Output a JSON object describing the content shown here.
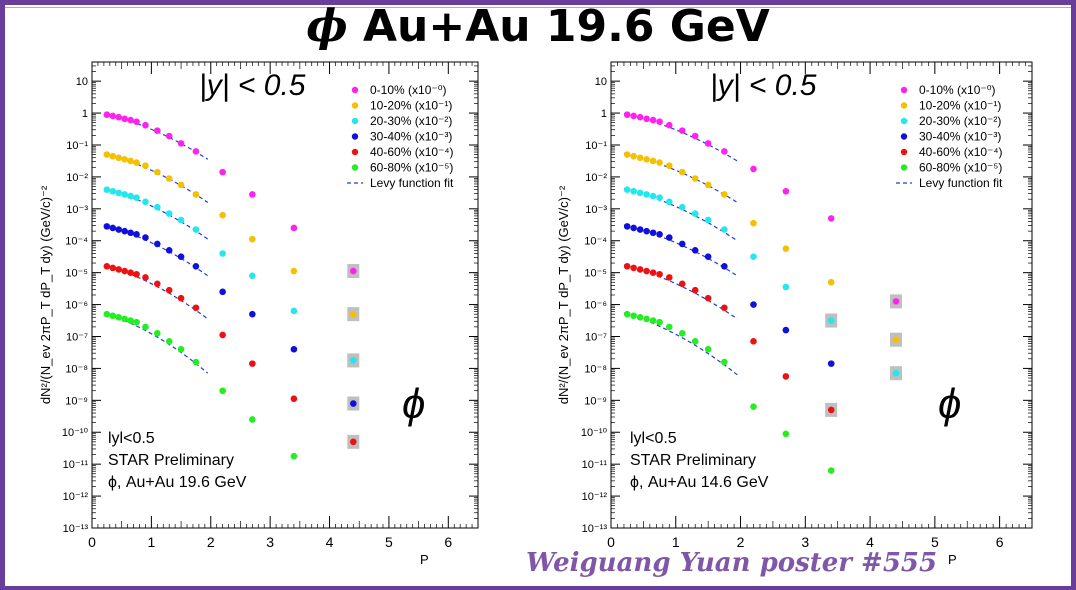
{
  "title": {
    "symbol": "ϕ",
    "text": "Au+Au 19.6 GeV"
  },
  "poster_credit": "Weiguang Yuan poster #555",
  "colors": {
    "frame": "#6a3d9a",
    "poster_text": "#7f56a8",
    "fit_line": "#1f3fd6",
    "series": [
      "#ff22ee",
      "#f5c000",
      "#22e8ee",
      "#1010dd",
      "#ee1111",
      "#22ee22"
    ],
    "sys_box": "#bfbfbf"
  },
  "chart_data": [
    {
      "type": "scatter",
      "ylabel": "dN²/(N_ev 2πP_T dP_T dy) (GeV/c)⁻²",
      "xlabel": "P_T (GeV/c)",
      "xlim": [
        0,
        6.5
      ],
      "ylim_log10": [
        -13,
        1.6
      ],
      "log_y": true,
      "x_ticks": [
        "0",
        "1",
        "2",
        "3",
        "4",
        "5",
        "6"
      ],
      "y_ticks": [
        "10⁻¹³",
        "10⁻¹²",
        "10⁻¹¹",
        "10⁻¹⁰",
        "10⁻⁹",
        "10⁻⁸",
        "10⁻⁷",
        "10⁻⁶",
        "10⁻⁵",
        "10⁻⁴",
        "10⁻³",
        "10⁻²",
        "10⁻¹",
        "1",
        "10"
      ],
      "rapidity_label": "|y| < 0.5",
      "phi_symbol": "ϕ",
      "annotations": [
        "lyl<0.5",
        "STAR Preliminary",
        "ϕ, Au+Au 19.6 GeV"
      ],
      "legend_position": "top-right",
      "legend": [
        "0-10% (x10⁻⁰)",
        "10-20% (x10⁻¹)",
        "20-30% (x10⁻²)",
        "30-40% (x10⁻³)",
        "40-60% (x10⁻⁴)",
        "60-80% (x10⁻⁵)",
        "Levy function fit"
      ],
      "x": [
        0.25,
        0.35,
        0.45,
        0.55,
        0.65,
        0.75,
        0.9,
        1.1,
        1.3,
        1.5,
        1.75,
        2.2,
        2.7,
        3.4,
        4.4
      ],
      "fit_x_range": [
        0.2,
        1.95
      ],
      "series": [
        {
          "values_log10": [
            -0.05,
            -0.09,
            -0.13,
            -0.18,
            -0.22,
            -0.27,
            -0.38,
            -0.55,
            -0.72,
            -0.95,
            -1.2,
            -1.85,
            -2.55,
            -3.6,
            -4.95
          ],
          "fit_end_log10": -1.45,
          "sys_box_points": [
            14
          ]
        },
        {
          "values_log10": [
            -1.3,
            -1.35,
            -1.4,
            -1.45,
            -1.5,
            -1.55,
            -1.65,
            -1.85,
            -2.05,
            -2.25,
            -2.55,
            -3.2,
            -3.95,
            -4.95,
            -6.3
          ],
          "fit_end_log10": -2.8,
          "sys_box_points": [
            14
          ]
        },
        {
          "values_log10": [
            -2.4,
            -2.45,
            -2.5,
            -2.55,
            -2.6,
            -2.65,
            -2.78,
            -2.95,
            -3.15,
            -3.35,
            -3.65,
            -4.4,
            -5.1,
            -6.2,
            -7.75
          ],
          "fit_end_log10": -3.95,
          "sys_box_points": [
            14
          ]
        },
        {
          "values_log10": [
            -3.55,
            -3.6,
            -3.65,
            -3.7,
            -3.75,
            -3.8,
            -3.9,
            -4.1,
            -4.3,
            -4.5,
            -4.8,
            -5.6,
            -6.3,
            -7.4,
            -9.1
          ],
          "fit_end_log10": -5.1,
          "sys_box_points": [
            14
          ]
        },
        {
          "values_log10": [
            -4.8,
            -4.85,
            -4.9,
            -4.95,
            -5.0,
            -5.05,
            -5.15,
            -5.35,
            -5.55,
            -5.8,
            -6.1,
            -6.95,
            -7.85,
            -8.95,
            -10.3
          ],
          "fit_end_log10": -6.45,
          "sys_box_points": [
            14
          ]
        },
        {
          "values_log10": [
            -6.3,
            -6.35,
            -6.4,
            -6.45,
            -6.5,
            -6.55,
            -6.7,
            -6.9,
            -7.15,
            -7.4,
            -7.8,
            -8.7,
            -9.6,
            -10.75,
            null
          ],
          "fit_end_log10": -8.15,
          "sys_box_points": []
        }
      ]
    },
    {
      "type": "scatter",
      "ylabel": "dN²/(N_ev 2πP_T dP_T dy) (GeV/c)⁻²",
      "xlabel": "P_T (GeV/c)",
      "xlim": [
        0,
        6.5
      ],
      "ylim_log10": [
        -13,
        1.6
      ],
      "log_y": true,
      "x_ticks": [
        "0",
        "1",
        "2",
        "3",
        "4",
        "5",
        "6"
      ],
      "y_ticks": [
        "10⁻¹³",
        "10⁻¹²",
        "10⁻¹¹",
        "10⁻¹⁰",
        "10⁻⁹",
        "10⁻⁸",
        "10⁻⁷",
        "10⁻⁶",
        "10⁻⁵",
        "10⁻⁴",
        "10⁻³",
        "10⁻²",
        "10⁻¹",
        "1",
        "10"
      ],
      "rapidity_label": "|y| < 0.5",
      "phi_symbol": "ϕ",
      "annotations": [
        "lyl<0.5",
        "STAR Preliminary",
        "ϕ, Au+Au 14.6 GeV"
      ],
      "legend_position": "top-right",
      "legend": [
        "0-10% (x10⁻⁰)",
        "10-20% (x10⁻¹)",
        "20-30% (x10⁻²)",
        "30-40% (x10⁻³)",
        "40-60% (x10⁻⁴)",
        "60-80% (x10⁻⁵)",
        "Levy function fit"
      ],
      "x": [
        0.25,
        0.35,
        0.45,
        0.55,
        0.65,
        0.75,
        0.9,
        1.1,
        1.3,
        1.5,
        1.75,
        2.2,
        2.7,
        3.4,
        4.4
      ],
      "fit_x_range": [
        0.2,
        1.95
      ],
      "series": [
        {
          "values_log10": [
            -0.05,
            -0.09,
            -0.13,
            -0.18,
            -0.22,
            -0.27,
            -0.38,
            -0.55,
            -0.72,
            -0.95,
            -1.2,
            -1.75,
            -2.45,
            -3.3,
            -5.9
          ],
          "fit_end_log10": -1.5,
          "sys_box_points": [
            14
          ]
        },
        {
          "values_log10": [
            -1.3,
            -1.35,
            -1.4,
            -1.45,
            -1.5,
            -1.55,
            -1.65,
            -1.85,
            -2.05,
            -2.25,
            -2.55,
            -3.45,
            -4.25,
            -5.3,
            -7.1
          ],
          "fit_end_log10": -2.8,
          "sys_box_points": [
            14
          ]
        },
        {
          "values_log10": [
            -2.4,
            -2.45,
            -2.5,
            -2.55,
            -2.6,
            -2.65,
            -2.78,
            -2.95,
            -3.15,
            -3.35,
            -3.65,
            -4.5,
            -5.45,
            -6.5,
            -8.15
          ],
          "fit_end_log10": -4.0,
          "sys_box_points": [
            13,
            14
          ]
        },
        {
          "values_log10": [
            -3.55,
            -3.6,
            -3.65,
            -3.7,
            -3.75,
            -3.8,
            -3.9,
            -4.1,
            -4.3,
            -4.5,
            -4.8,
            -6.0,
            -6.8,
            -7.85,
            null
          ],
          "fit_end_log10": -5.1,
          "sys_box_points": []
        },
        {
          "values_log10": [
            -4.8,
            -4.85,
            -4.9,
            -4.95,
            -5.0,
            -5.05,
            -5.15,
            -5.35,
            -5.55,
            -5.8,
            -6.1,
            -7.15,
            -8.25,
            -9.3,
            null
          ],
          "fit_end_log10": -6.45,
          "sys_box_points": [
            13
          ]
        },
        {
          "values_log10": [
            -6.3,
            -6.35,
            -6.4,
            -6.45,
            -6.5,
            -6.55,
            -6.7,
            -6.9,
            -7.15,
            -7.4,
            -7.8,
            -9.2,
            -10.05,
            -11.2,
            null
          ],
          "fit_end_log10": -8.2,
          "sys_box_points": []
        }
      ]
    }
  ]
}
